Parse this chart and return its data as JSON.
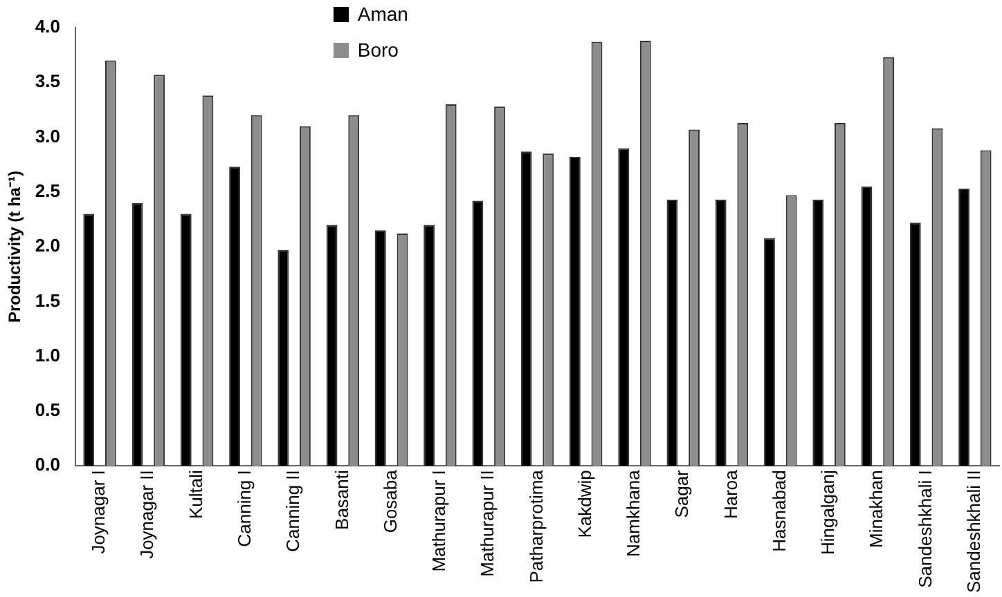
{
  "chart_data": {
    "type": "bar",
    "ylabel": "Productivity (t ha⁻¹)",
    "categories": [
      "Joynagar I",
      "Joynagar II",
      "Kultali",
      "Canning I",
      "Canning II",
      "Basanti",
      "Gosaba",
      "Mathurapur I",
      "Mathurapur II",
      "Patharprotima",
      "Kakdwip",
      "Namkhana",
      "Sagar",
      "Haroa",
      "Hasnabad",
      "Hingalganj",
      "Minakhan",
      "Sandeshkhali I",
      "Sandeshkhali II"
    ],
    "series": [
      {
        "name": "Aman",
        "color": "#000000",
        "values": [
          2.3,
          2.4,
          2.3,
          2.73,
          1.97,
          2.2,
          2.15,
          2.2,
          2.42,
          2.87,
          2.82,
          2.9,
          2.43,
          2.43,
          2.08,
          2.43,
          2.55,
          2.22,
          2.53
        ]
      },
      {
        "name": "Boro",
        "color": "#8c8c8c",
        "values": [
          3.7,
          3.57,
          3.38,
          3.2,
          3.1,
          3.2,
          2.12,
          3.3,
          3.28,
          2.85,
          3.87,
          3.88,
          3.07,
          3.13,
          2.47,
          3.13,
          3.73,
          3.08,
          2.88
        ]
      }
    ],
    "ylim": [
      0,
      4
    ],
    "yticks": [
      {
        "value": 0,
        "label": "0.0"
      },
      {
        "value": 0.5,
        "label": "0.5"
      },
      {
        "value": 1,
        "label": "1.0"
      },
      {
        "value": 1.5,
        "label": "1.5"
      },
      {
        "value": 2,
        "label": "2.0"
      },
      {
        "value": 2.5,
        "label": "2.5"
      },
      {
        "value": 3,
        "label": "3.0"
      },
      {
        "value": 3.5,
        "label": "3.5"
      },
      {
        "value": 4,
        "label": "4.0"
      }
    ],
    "grid": false,
    "legend": "top left"
  }
}
